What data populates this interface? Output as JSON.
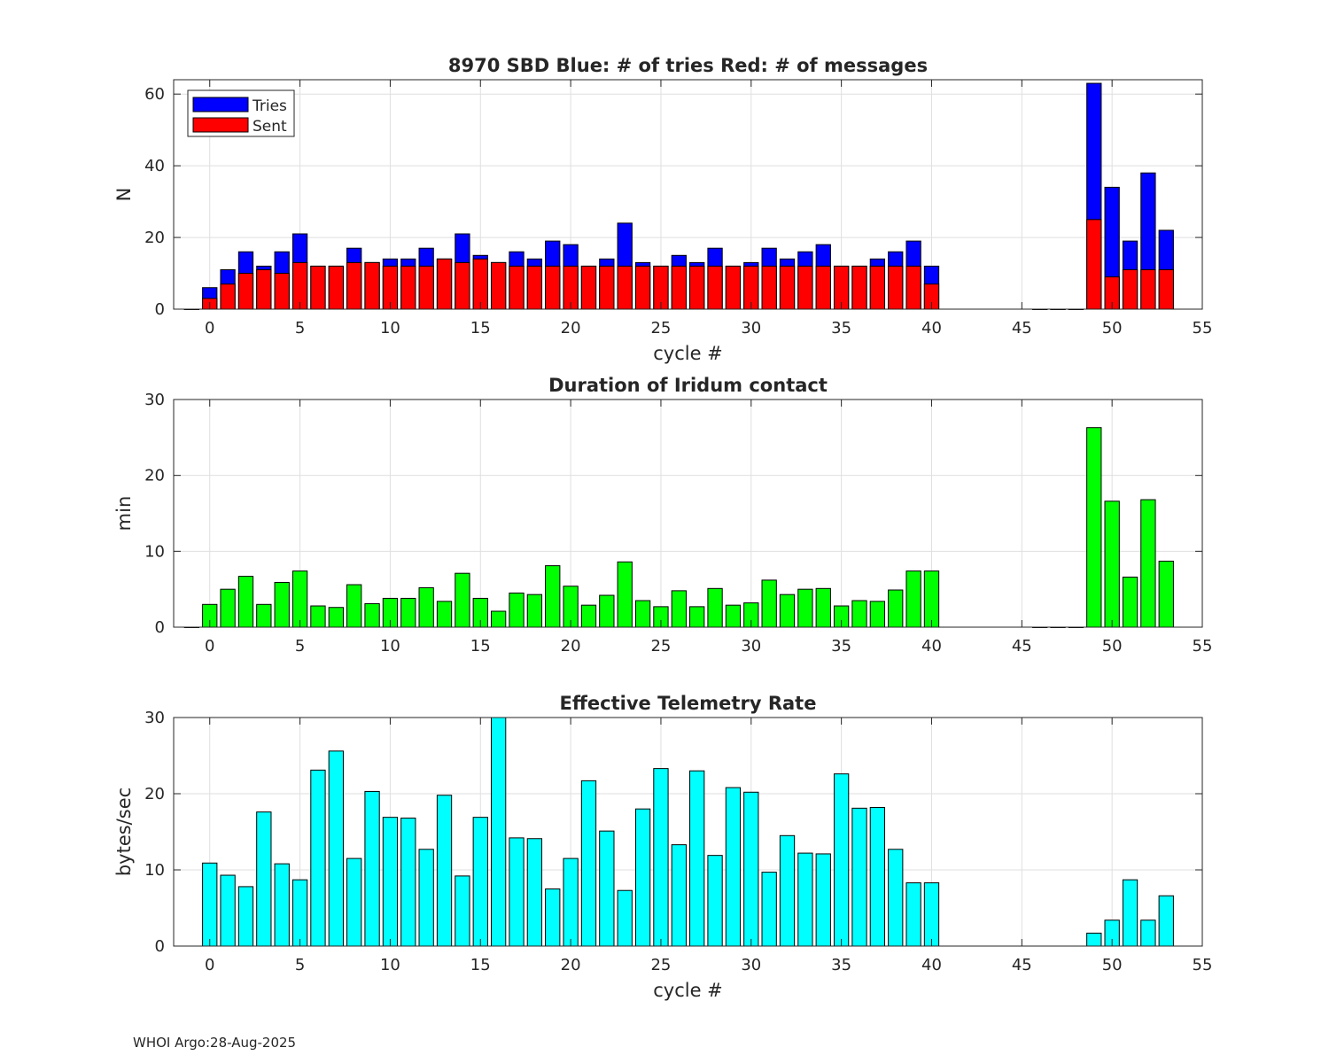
{
  "footer": "WHOI Argo:28-Aug-2025",
  "colors": {
    "tries": "#0000ff",
    "sent": "#ff0000",
    "duration": "#00ff00",
    "rate": "#00ffff",
    "grid": "#dfdfdf",
    "axis": "#262626"
  },
  "chart_data": [
    {
      "type": "bar",
      "title": "8970 SBD  Blue: # of tries   Red: # of messages",
      "xlabel": "cycle #",
      "ylabel": "N",
      "xlim": [
        -2,
        55
      ],
      "ylim": [
        0,
        64
      ],
      "xticks": [
        0,
        5,
        10,
        15,
        20,
        25,
        30,
        35,
        40,
        45,
        50,
        55
      ],
      "yticks": [
        0,
        20,
        40,
        60
      ],
      "legend": {
        "position": "top-left",
        "entries": [
          "Tries",
          "Sent"
        ]
      },
      "x": [
        -1,
        0,
        1,
        2,
        3,
        4,
        5,
        6,
        7,
        8,
        9,
        10,
        11,
        12,
        13,
        14,
        15,
        16,
        17,
        18,
        19,
        20,
        21,
        22,
        23,
        24,
        25,
        26,
        27,
        28,
        29,
        30,
        31,
        32,
        33,
        34,
        35,
        36,
        37,
        38,
        39,
        40,
        46,
        47,
        48,
        49,
        50,
        51,
        52,
        53
      ],
      "series": [
        {
          "name": "Tries",
          "values": [
            0,
            6,
            11,
            16,
            12,
            16,
            21,
            12,
            12,
            17,
            13,
            14,
            14,
            17,
            14,
            21,
            15,
            13,
            16,
            14,
            19,
            18,
            12,
            14,
            24,
            13,
            12,
            15,
            13,
            17,
            12,
            13,
            17,
            14,
            16,
            18,
            12,
            12,
            14,
            16,
            19,
            12,
            0,
            0,
            0,
            63,
            34,
            19,
            38,
            22
          ]
        },
        {
          "name": "Sent",
          "values": [
            0,
            3,
            7,
            10,
            11,
            10,
            13,
            12,
            12,
            13,
            13,
            12,
            12,
            12,
            14,
            13,
            14,
            13,
            12,
            12,
            12,
            12,
            12,
            12,
            12,
            12,
            12,
            12,
            12,
            12,
            12,
            12,
            12,
            12,
            12,
            12,
            12,
            12,
            12,
            12,
            12,
            7,
            0,
            0,
            0,
            25,
            9,
            11,
            11,
            11
          ]
        }
      ]
    },
    {
      "type": "bar",
      "title": "Duration of Iridum contact",
      "xlabel": "",
      "ylabel": "min",
      "xlim": [
        -2,
        55
      ],
      "ylim": [
        0,
        30
      ],
      "xticks": [
        0,
        5,
        10,
        15,
        20,
        25,
        30,
        35,
        40,
        45,
        50,
        55
      ],
      "yticks": [
        0,
        10,
        20,
        30
      ],
      "x": [
        -1,
        0,
        1,
        2,
        3,
        4,
        5,
        6,
        7,
        8,
        9,
        10,
        11,
        12,
        13,
        14,
        15,
        16,
        17,
        18,
        19,
        20,
        21,
        22,
        23,
        24,
        25,
        26,
        27,
        28,
        29,
        30,
        31,
        32,
        33,
        34,
        35,
        36,
        37,
        38,
        39,
        40,
        46,
        47,
        48,
        49,
        50,
        51,
        52,
        53
      ],
      "values": [
        0,
        3.0,
        5.0,
        6.7,
        3.0,
        5.9,
        7.4,
        2.8,
        2.6,
        5.6,
        3.1,
        3.8,
        3.8,
        5.2,
        3.4,
        7.1,
        3.8,
        2.1,
        4.5,
        4.3,
        8.1,
        5.4,
        2.9,
        4.2,
        8.6,
        3.5,
        2.7,
        4.8,
        2.7,
        5.1,
        2.9,
        3.2,
        6.2,
        4.3,
        5.0,
        5.1,
        2.8,
        3.5,
        3.4,
        4.9,
        7.4,
        7.4,
        0,
        0,
        0,
        26.3,
        16.6,
        6.6,
        16.8,
        8.7
      ]
    },
    {
      "type": "bar",
      "title": "Effective Telemetry Rate",
      "xlabel": "cycle #",
      "ylabel": "bytes/sec",
      "xlim": [
        -2,
        55
      ],
      "ylim": [
        0,
        30
      ],
      "xticks": [
        0,
        5,
        10,
        15,
        20,
        25,
        30,
        35,
        40,
        45,
        50,
        55
      ],
      "yticks": [
        0,
        10,
        20,
        30
      ],
      "x": [
        0,
        1,
        2,
        3,
        4,
        5,
        6,
        7,
        8,
        9,
        10,
        11,
        12,
        13,
        14,
        15,
        16,
        17,
        18,
        19,
        20,
        21,
        22,
        23,
        24,
        25,
        26,
        27,
        28,
        29,
        30,
        31,
        32,
        33,
        34,
        35,
        36,
        37,
        38,
        39,
        40,
        49,
        50,
        51,
        52,
        53
      ],
      "values": [
        10.9,
        9.3,
        7.8,
        17.6,
        10.8,
        8.7,
        23.1,
        25.6,
        11.5,
        20.3,
        16.9,
        16.8,
        12.7,
        19.8,
        9.2,
        16.9,
        31.0,
        14.2,
        14.1,
        7.5,
        11.5,
        21.7,
        15.1,
        7.3,
        18.0,
        23.3,
        13.3,
        23.0,
        11.9,
        20.8,
        20.2,
        9.7,
        14.5,
        12.2,
        12.1,
        22.6,
        18.1,
        18.2,
        12.7,
        8.3,
        8.3,
        1.7,
        3.4,
        8.7,
        3.4,
        6.6
      ]
    }
  ]
}
